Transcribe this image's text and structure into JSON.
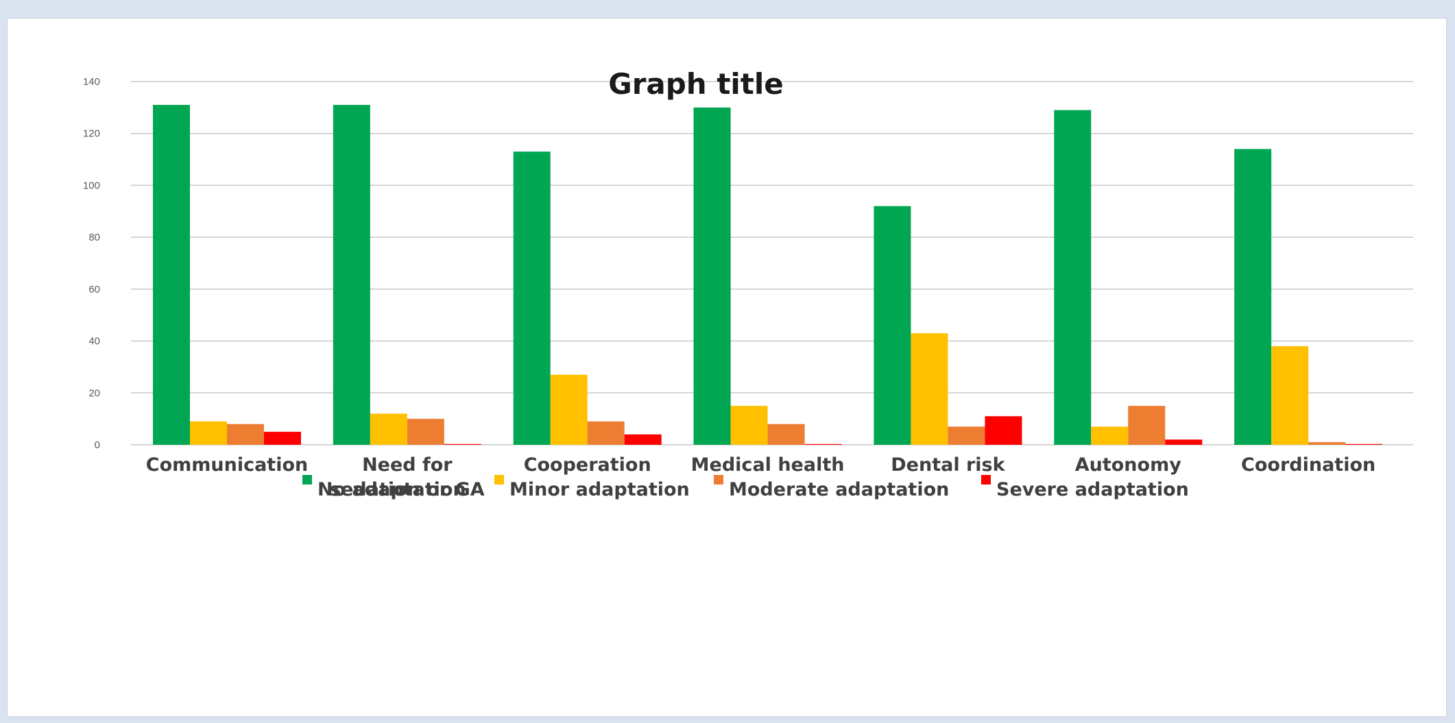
{
  "chart_data": {
    "type": "bar",
    "title": "Graph title",
    "xlabel": "",
    "ylabel": "",
    "ylim": [
      0,
      140
    ],
    "yticks": [
      0,
      20,
      40,
      60,
      80,
      100,
      120,
      140
    ],
    "grid": true,
    "legend_position": "bottom",
    "categories": [
      "Communication",
      "Need for sedation or GA",
      "Cooperation",
      "Medical health",
      "Dental risk",
      "Autonomy",
      "Coordination"
    ],
    "series": [
      {
        "name": "No adaptation",
        "color": "#00a651",
        "values": [
          131,
          131,
          113,
          130,
          92,
          129,
          114
        ]
      },
      {
        "name": "Minor adaptation",
        "color": "#ffc000",
        "values": [
          9,
          12,
          27,
          15,
          43,
          7,
          38
        ]
      },
      {
        "name": "Moderate adaptation",
        "color": "#ed7d31",
        "values": [
          8,
          10,
          9,
          8,
          7,
          15,
          1
        ]
      },
      {
        "name": "Severe adaptation",
        "color": "#ff0000",
        "values": [
          5,
          0.3,
          4,
          0.3,
          11,
          2,
          0.3
        ]
      }
    ]
  }
}
